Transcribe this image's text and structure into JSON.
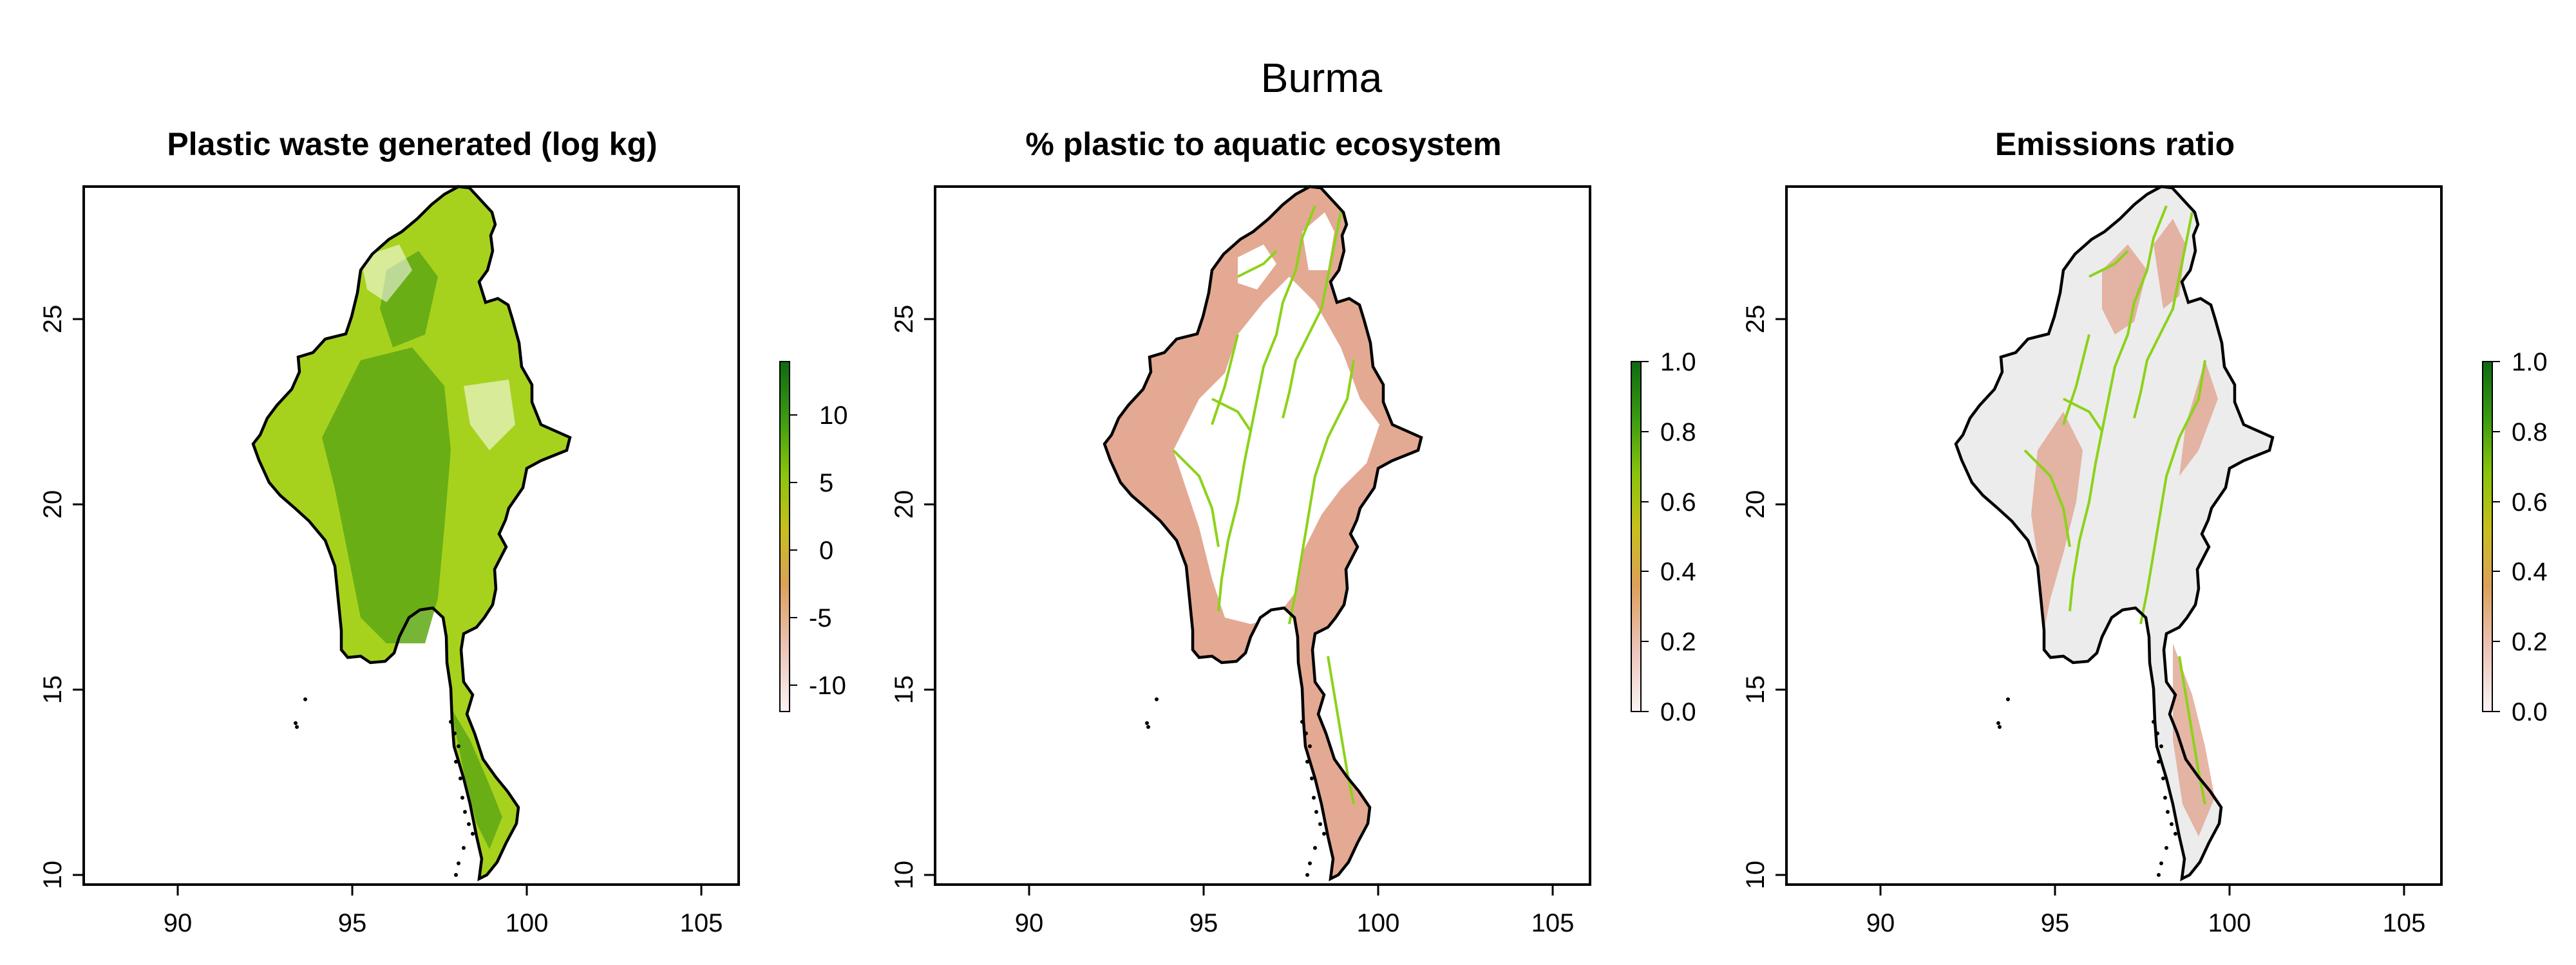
{
  "figure": {
    "title": "Burma"
  },
  "panels": [
    {
      "id": "waste",
      "title": "Plastic waste generated (log kg)",
      "x_ticks": [
        "90",
        "95",
        "100",
        "105"
      ],
      "y_ticks": [
        "10",
        "15",
        "20",
        "25"
      ],
      "legend_ticks": [
        "10",
        "5",
        "0",
        "-5",
        "-10"
      ],
      "legend_range": [
        -12,
        14
      ],
      "legend_colors": [
        "#fbf4f4",
        "#ecc4b8",
        "#dda05a",
        "#c8bf1e",
        "#8ac40c",
        "#3a9a12",
        "#0e6a12"
      ],
      "map_fill": "green"
    },
    {
      "id": "aquatic",
      "title": "% plastic to aquatic ecosystem",
      "x_ticks": [
        "90",
        "95",
        "100",
        "105"
      ],
      "y_ticks": [
        "10",
        "15",
        "20",
        "25"
      ],
      "legend_ticks": [
        "1.0",
        "0.8",
        "0.6",
        "0.4",
        "0.2",
        "0.0"
      ],
      "legend_range": [
        0,
        1
      ],
      "legend_colors": [
        "#fbf4f4",
        "#ecc4b8",
        "#dda05a",
        "#c8bf1e",
        "#8ac40c",
        "#3a9a12",
        "#0e6a12"
      ],
      "map_fill": "white-rivers"
    },
    {
      "id": "emissions",
      "title": "Emissions ratio",
      "x_ticks": [
        "90",
        "95",
        "100",
        "105"
      ],
      "y_ticks": [
        "10",
        "15",
        "20",
        "25"
      ],
      "legend_ticks": [
        "1.0",
        "0.8",
        "0.6",
        "0.4",
        "0.2",
        "0.0"
      ],
      "legend_range": [
        0,
        1
      ],
      "legend_colors": [
        "#fbf4f4",
        "#ecc4b8",
        "#dda05a",
        "#c8bf1e",
        "#8ac40c",
        "#3a9a12",
        "#0e6a12"
      ],
      "map_fill": "grey-rivers"
    }
  ],
  "colors": {
    "axis": "#000000",
    "map_green_light": "#a6d21e",
    "map_green_dark": "#5fa814",
    "river": "#8cd21a",
    "edge_salmon": "#dc9a86",
    "grey_fill": "#ececec"
  }
}
